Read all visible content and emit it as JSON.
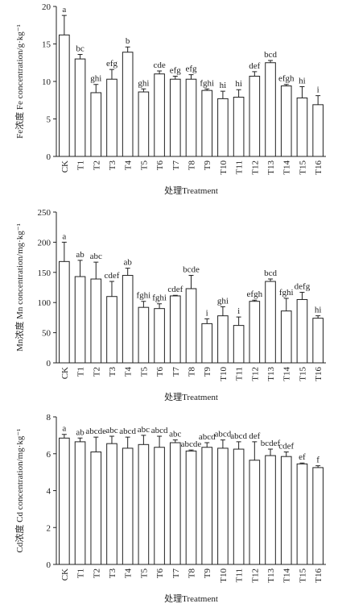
{
  "chart_data": [
    {
      "type": "bar",
      "y_label": "Fe浓度 Fe concentration/g·kg⁻¹",
      "x_label": "处理Treatment",
      "categories": [
        "CK",
        "T1",
        "T2",
        "T3",
        "T4",
        "T5",
        "T6",
        "T7",
        "T8",
        "T9",
        "T10",
        "T11",
        "T12",
        "T13",
        "T14",
        "T15",
        "T16"
      ],
      "values": [
        16.2,
        13,
        8.5,
        10.3,
        13.9,
        8.6,
        11,
        10.3,
        10.3,
        8.8,
        7.7,
        7.9,
        10.7,
        12.5,
        9.4,
        7.8,
        6.9
      ],
      "errors": [
        2.6,
        0.6,
        1.1,
        1.3,
        0.7,
        0.4,
        0.4,
        0.4,
        0.6,
        0.2,
        1,
        1,
        0.6,
        0.3,
        0.2,
        1.5,
        1.2
      ],
      "letters": [
        "a",
        "bc",
        "ghi",
        "efg",
        "b",
        "ghi",
        "cde",
        "efg",
        "efg",
        "fghi",
        "hi",
        "hi",
        "def",
        "bcd",
        "efgh",
        "hi",
        "i"
      ],
      "ylim": [
        0,
        20
      ],
      "yticks": [
        0,
        5,
        10,
        15,
        20
      ],
      "color": "#ffffff"
    },
    {
      "type": "bar",
      "y_label": "Mn浓度 Mn concentration/mg·kg⁻¹",
      "x_label": "处理Treatment",
      "categories": [
        "CK",
        "T1",
        "T2",
        "T3",
        "T4",
        "T5",
        "T6",
        "T7",
        "T8",
        "T9",
        "T10",
        "T11",
        "T12",
        "T13",
        "T14",
        "T15",
        "T16"
      ],
      "values": [
        168,
        143,
        139,
        110,
        145,
        92,
        90,
        111,
        123,
        65,
        78,
        62,
        102,
        135,
        86,
        105,
        74
      ],
      "errors": [
        32,
        27,
        28,
        25,
        12,
        10,
        8,
        1,
        22,
        8,
        15,
        14,
        2,
        4,
        21,
        12,
        4
      ],
      "letters": [
        "a",
        "ab",
        "abc",
        "cdef",
        "ab",
        "fghi",
        "fghi",
        "cdef",
        "bcde",
        "i",
        "ghi",
        "i",
        "efgh",
        "bcd",
        "fghi",
        "defg",
        "hi"
      ],
      "ylim": [
        0,
        250
      ],
      "yticks": [
        0,
        50,
        100,
        150,
        200,
        250
      ],
      "color": "#ffffff"
    },
    {
      "type": "bar",
      "y_label": "Cd浓度 Cd concentration/mg·kg⁻¹",
      "x_label": "处理Treatment",
      "categories": [
        "CK",
        "T1",
        "T2",
        "T3",
        "T4",
        "T5",
        "T6",
        "T7",
        "T8",
        "T9",
        "T10",
        "T11",
        "T12",
        "T13",
        "T14",
        "T15",
        "T16"
      ],
      "values": [
        6.85,
        6.65,
        6.1,
        6.55,
        6.3,
        6.5,
        6.35,
        6.6,
        6.15,
        6.35,
        6.3,
        6.25,
        5.65,
        5.9,
        5.85,
        5.45,
        5.25
      ],
      "errors": [
        0.2,
        0.2,
        0.8,
        0.4,
        0.6,
        0.5,
        0.6,
        0.15,
        0.05,
        0.25,
        0.45,
        0.4,
        1,
        0.35,
        0.25,
        0.05,
        0.1
      ],
      "letters": [
        "a",
        "ab",
        "abcde",
        "abc",
        "abcd",
        "abc",
        "abcd",
        "abc",
        "abcde",
        "abcd",
        "abcd",
        "abcd",
        "def",
        "bcdef",
        "cdef",
        "ef",
        "f"
      ],
      "ylim": [
        0,
        8
      ],
      "yticks": [
        0,
        2,
        4,
        6,
        8
      ],
      "color": "#ffffff"
    }
  ]
}
